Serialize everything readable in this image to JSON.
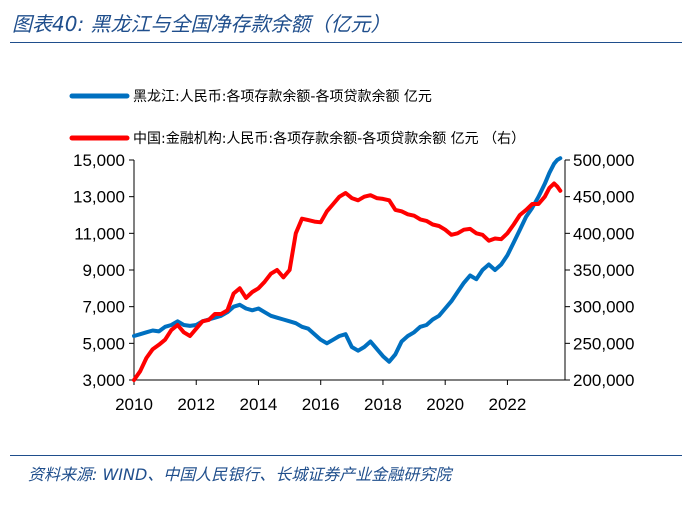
{
  "header": {
    "title": "图表40:  黑龙江与全国净存款余额（亿元）"
  },
  "footer": {
    "source": "资料来源:  WIND、中国人民银行、长城证券产业金融研究院"
  },
  "colors": {
    "heilongjiang": "#0070c0",
    "china": "#ff0000",
    "brand": "#1f4e8c"
  },
  "chart_data": {
    "type": "line",
    "title": "黑龙江与全国净存款余额（亿元）",
    "xlabel": "",
    "ylabel_left": "",
    "ylabel_right": "",
    "xlim": [
      2010,
      2023.85
    ],
    "ylim_left": [
      3000,
      15000
    ],
    "ylim_right": [
      200000,
      500000
    ],
    "x_ticks": [
      "2010",
      "2012",
      "2014",
      "2016",
      "2018",
      "2020",
      "2022"
    ],
    "y_left_ticks": [
      "3,000",
      "5,000",
      "7,000",
      "9,000",
      "11,000",
      "13,000",
      "15,000"
    ],
    "y_right_ticks": [
      "200,000",
      "250,000",
      "300,000",
      "350,000",
      "400,000",
      "450,000",
      "500,000"
    ],
    "legend_position": "top-left",
    "series": [
      {
        "name": "黑龙江:人民币:各项存款余额-各项贷款余额  亿元",
        "axis": "left",
        "color": "#0070c0",
        "x": [
          2010.0,
          2010.2,
          2010.4,
          2010.6,
          2010.8,
          2011.0,
          2011.2,
          2011.4,
          2011.6,
          2011.8,
          2012.0,
          2012.2,
          2012.4,
          2012.6,
          2012.8,
          2013.0,
          2013.2,
          2013.4,
          2013.6,
          2013.8,
          2014.0,
          2014.2,
          2014.4,
          2014.6,
          2014.8,
          2015.0,
          2015.2,
          2015.4,
          2015.6,
          2015.8,
          2016.0,
          2016.2,
          2016.4,
          2016.6,
          2016.8,
          2017.0,
          2017.2,
          2017.4,
          2017.6,
          2017.8,
          2018.0,
          2018.2,
          2018.4,
          2018.6,
          2018.8,
          2019.0,
          2019.2,
          2019.4,
          2019.6,
          2019.8,
          2020.0,
          2020.2,
          2020.4,
          2020.6,
          2020.8,
          2021.0,
          2021.2,
          2021.4,
          2021.6,
          2021.8,
          2022.0,
          2022.2,
          2022.4,
          2022.6,
          2022.8,
          2023.0,
          2023.2,
          2023.35,
          2023.5,
          2023.6,
          2023.7
        ],
        "values": [
          5400,
          5500,
          5600,
          5700,
          5650,
          5900,
          6000,
          6200,
          6000,
          5950,
          6000,
          6200,
          6300,
          6400,
          6500,
          6700,
          7000,
          7100,
          6900,
          6800,
          6900,
          6700,
          6500,
          6400,
          6300,
          6200,
          6100,
          5900,
          5800,
          5500,
          5200,
          5000,
          5200,
          5400,
          5500,
          4800,
          4600,
          4800,
          5100,
          4700,
          4300,
          4000,
          4400,
          5100,
          5400,
          5600,
          5900,
          6000,
          6300,
          6500,
          6900,
          7300,
          7800,
          8300,
          8700,
          8500,
          9000,
          9300,
          9000,
          9300,
          9800,
          10500,
          11200,
          11900,
          12400,
          13000,
          13700,
          14300,
          14800,
          15000,
          15100
        ]
      },
      {
        "name": "中国:金融机构:人民币:各项存款余额-各项贷款余额  亿元 （右）",
        "axis": "right",
        "color": "#ff0000",
        "x": [
          2010.0,
          2010.2,
          2010.4,
          2010.6,
          2010.8,
          2011.0,
          2011.2,
          2011.4,
          2011.6,
          2011.8,
          2012.0,
          2012.2,
          2012.4,
          2012.6,
          2012.8,
          2013.0,
          2013.2,
          2013.4,
          2013.6,
          2013.8,
          2014.0,
          2014.2,
          2014.4,
          2014.6,
          2014.8,
          2015.0,
          2015.2,
          2015.4,
          2015.6,
          2015.8,
          2016.0,
          2016.2,
          2016.4,
          2016.6,
          2016.8,
          2017.0,
          2017.2,
          2017.4,
          2017.6,
          2017.8,
          2018.0,
          2018.2,
          2018.4,
          2018.6,
          2018.8,
          2019.0,
          2019.2,
          2019.4,
          2019.6,
          2019.8,
          2020.0,
          2020.2,
          2020.4,
          2020.6,
          2020.8,
          2021.0,
          2021.2,
          2021.4,
          2021.6,
          2021.8,
          2022.0,
          2022.2,
          2022.4,
          2022.6,
          2022.8,
          2023.0,
          2023.2,
          2023.35,
          2023.5,
          2023.6,
          2023.7
        ],
        "values": [
          200000,
          212000,
          230000,
          242000,
          248000,
          255000,
          268000,
          275000,
          265000,
          260000,
          270000,
          280000,
          282000,
          290000,
          290000,
          295000,
          318000,
          325000,
          312000,
          320000,
          325000,
          334000,
          345000,
          350000,
          340000,
          350000,
          400000,
          420000,
          418000,
          416000,
          415000,
          430000,
          440000,
          450000,
          455000,
          448000,
          445000,
          450000,
          452000,
          448000,
          447000,
          445000,
          432000,
          430000,
          426000,
          424000,
          419000,
          417000,
          412000,
          410000,
          405000,
          398000,
          400000,
          405000,
          406000,
          400000,
          398000,
          390000,
          393000,
          392000,
          400000,
          412000,
          425000,
          432000,
          440000,
          440000,
          450000,
          462000,
          468000,
          464000,
          458000
        ]
      }
    ]
  }
}
